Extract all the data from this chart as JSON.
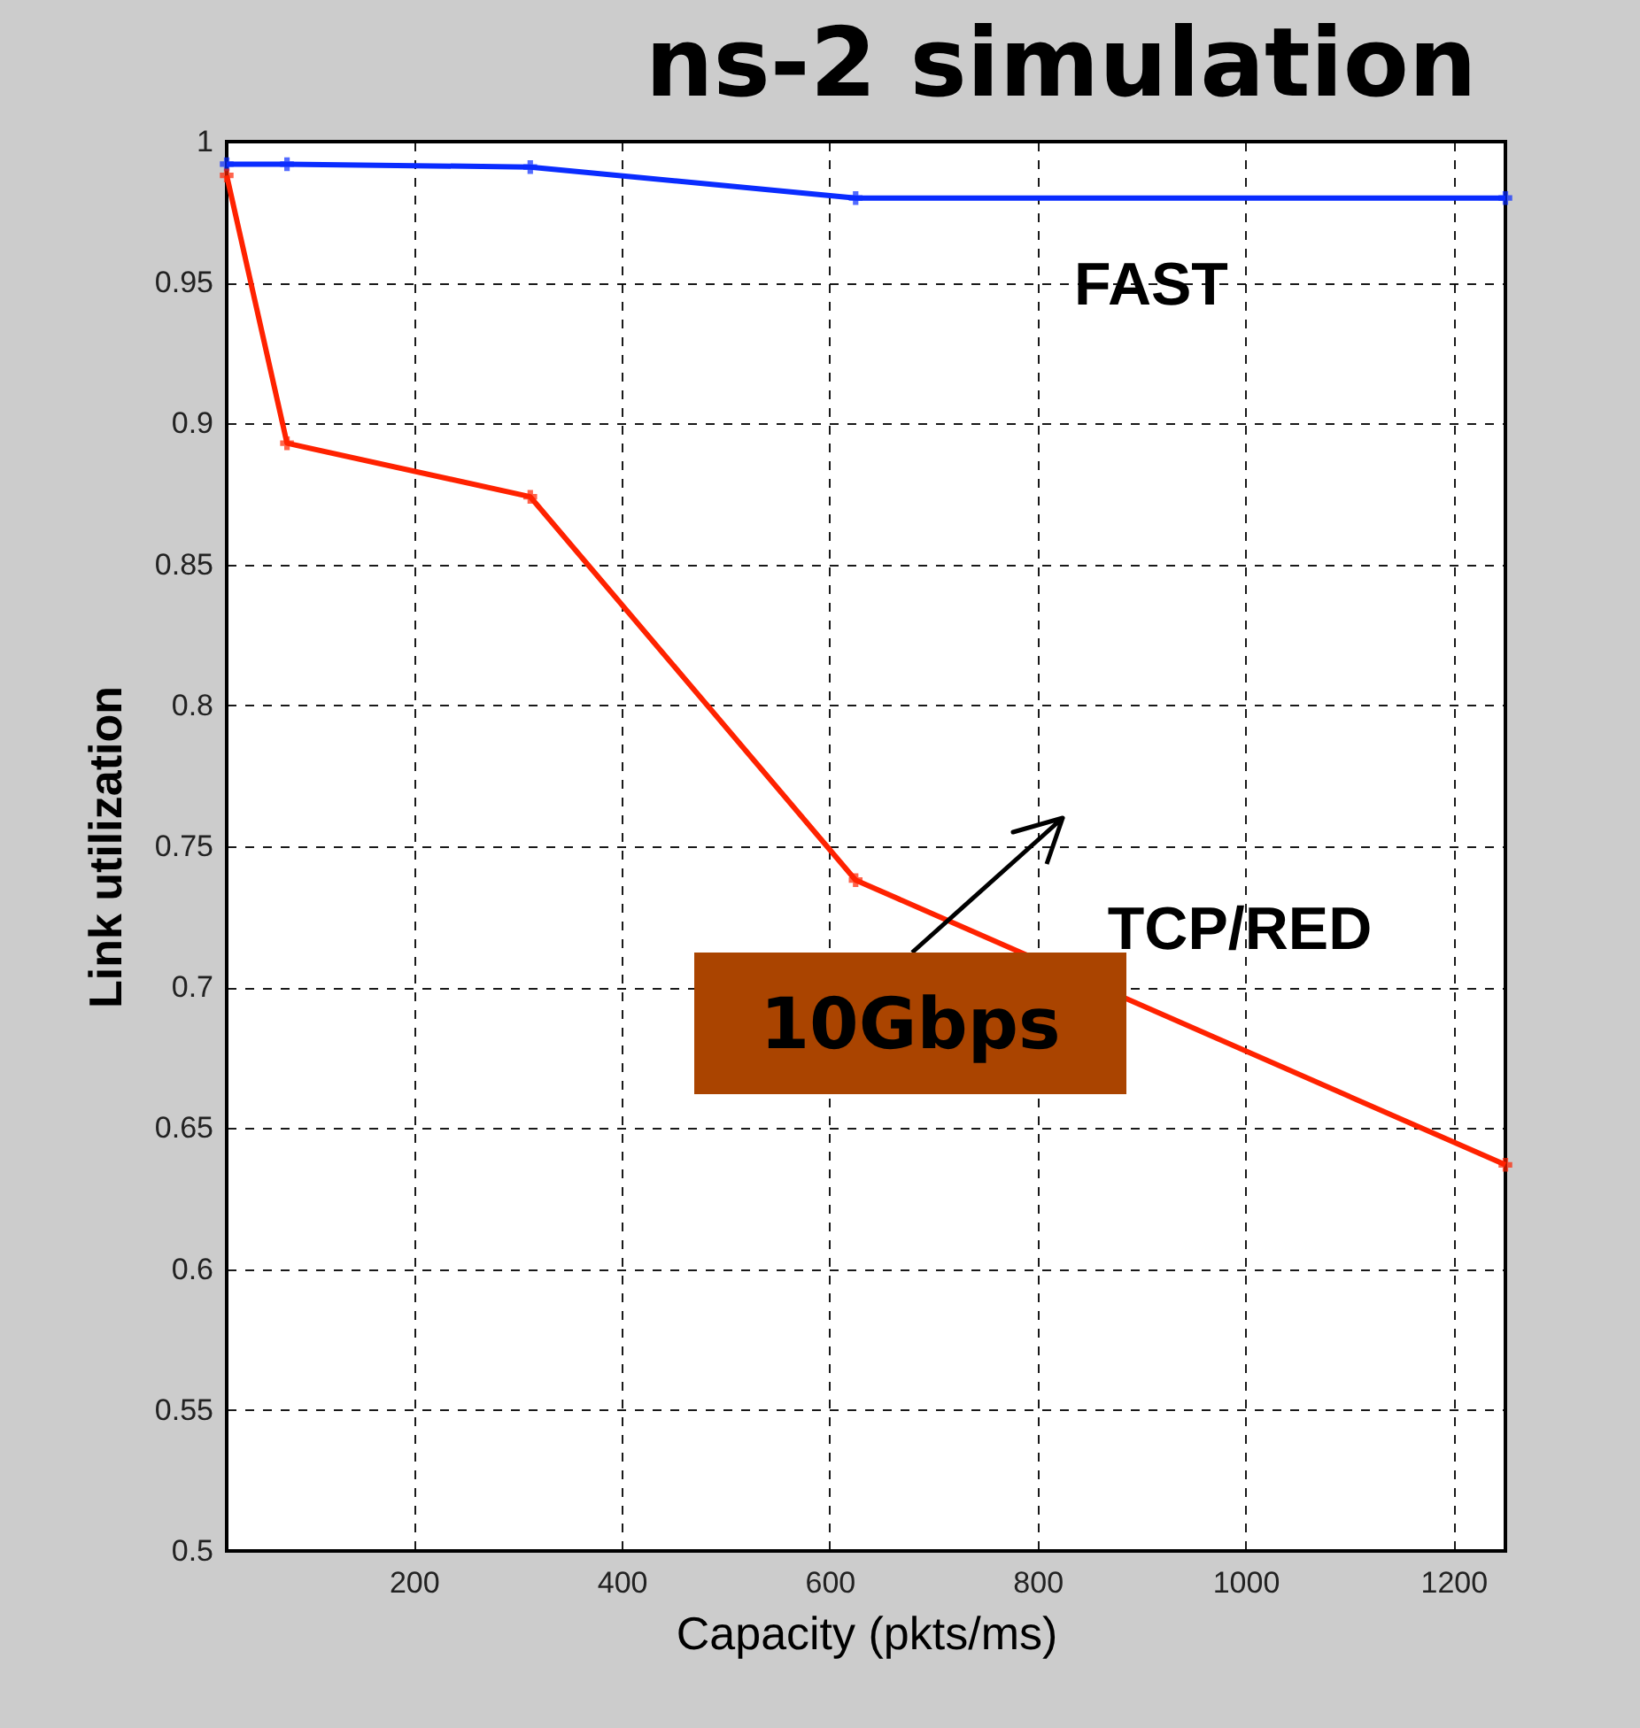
{
  "chart_data": {
    "type": "line",
    "title": "ns-2 simulation",
    "xlabel": "Capacity (pkts/ms)",
    "ylabel": "Link utilization",
    "x": [
      20,
      78,
      312,
      625,
      1250
    ],
    "series": [
      {
        "name": "FAST",
        "color": "#0a2cff",
        "values": [
          0.992,
          0.992,
          0.991,
          0.98,
          0.98
        ]
      },
      {
        "name": "TCP/RED",
        "color": "#ff2200",
        "values": [
          0.988,
          0.893,
          0.874,
          0.738,
          0.637
        ]
      }
    ],
    "xlim": [
      20,
      1250
    ],
    "xticks": [
      200,
      400,
      600,
      800,
      1000,
      1200
    ],
    "ylim": [
      0.5,
      1
    ],
    "yticks": [
      0.5,
      0.55,
      0.6,
      0.65,
      0.7,
      0.75,
      0.8,
      0.85,
      0.9,
      0.95,
      1
    ],
    "grid": true,
    "marker": "cross",
    "line_style": "solid",
    "annotations": [
      "10Gbps"
    ]
  }
}
